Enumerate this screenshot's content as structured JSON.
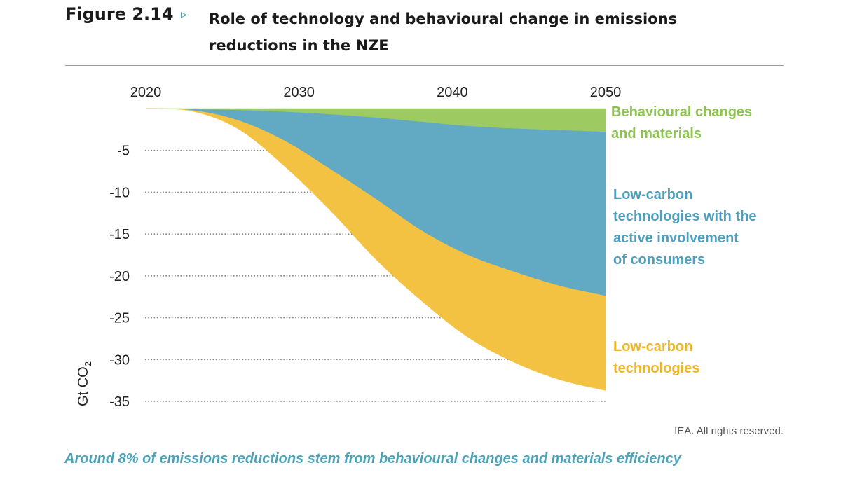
{
  "header": {
    "figure_label": "Figure 2.14",
    "arrow": "▹",
    "title": "Role of technology and behavioural change in emissions reductions in the NZE"
  },
  "chart_data": {
    "type": "area",
    "ylabel_main": "Gt CO",
    "ylabel_sub": "2",
    "x_ticks": [
      "2020",
      "2030",
      "2040",
      "2050"
    ],
    "y_ticks": [
      -5,
      -10,
      -15,
      -20,
      -25,
      -30,
      -35
    ],
    "xlim": [
      2020,
      2050
    ],
    "ylim": [
      -35,
      0
    ],
    "grid": "dotted horizontal",
    "legend": "inline labels right of chart",
    "x": [
      2020,
      2023,
      2026,
      2029,
      2032,
      2035,
      2038,
      2041,
      2044,
      2047,
      2050
    ],
    "series": [
      {
        "name": "Behavioural changes and materials",
        "color": "#9dcb61",
        "boundary": [
          0,
          -0.1,
          -0.2,
          -0.4,
          -0.7,
          -1.1,
          -1.6,
          -2.1,
          -2.4,
          -2.6,
          -2.8
        ]
      },
      {
        "name": "Low-carbon technologies with the active involvement of consumers",
        "color": "#62a9c4",
        "boundary": [
          0,
          -0.2,
          -1.4,
          -3.8,
          -7.2,
          -10.8,
          -14.6,
          -17.5,
          -19.5,
          -21.2,
          -22.4
        ]
      },
      {
        "name": "Low-carbon technologies",
        "color": "#f4c243",
        "boundary": [
          0,
          -0.3,
          -2.4,
          -6.8,
          -12.1,
          -18.0,
          -23.0,
          -27.3,
          -30.3,
          -32.4,
          -33.7
        ]
      }
    ],
    "labels": [
      {
        "lines": [
          "Behavioural changes",
          "and materials"
        ],
        "color": "#8dc44f"
      },
      {
        "lines": [
          "Low-carbon",
          "technologies with the",
          "active involvement",
          "of consumers"
        ],
        "color": "#4d9fbd"
      },
      {
        "lines": [
          "Low-carbon",
          "technologies"
        ],
        "color": "#efb625"
      }
    ]
  },
  "footer": {
    "credit": "IEA. All rights reserved.",
    "caption": "Around 8% of emissions reductions stem from behavioural changes and materials efficiency"
  }
}
